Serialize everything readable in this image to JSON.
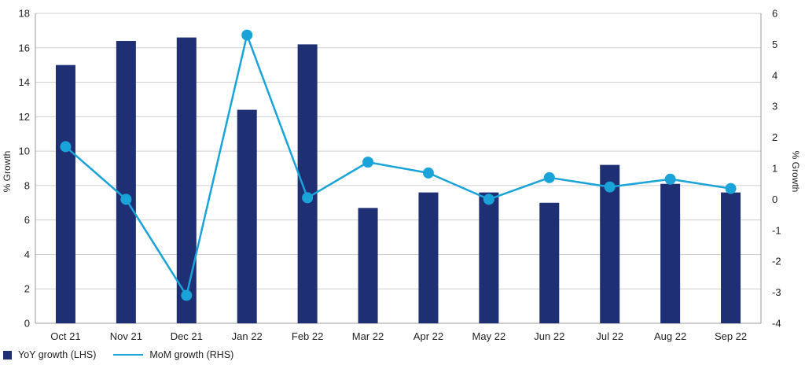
{
  "chart_data": {
    "type": "bar+line",
    "categories": [
      "Oct 21",
      "Nov 21",
      "Dec 21",
      "Jan 22",
      "Feb 22",
      "Mar 22",
      "Apr 22",
      "May 22",
      "Jun 22",
      "Jul 22",
      "Aug 22",
      "Sep 22"
    ],
    "series": [
      {
        "name": "YoY growth (LHS)",
        "type": "bar",
        "axis": "left",
        "color": "#1f2f73",
        "values": [
          15.0,
          16.4,
          16.6,
          12.4,
          16.2,
          6.7,
          7.6,
          7.6,
          7.0,
          9.2,
          8.1,
          7.6
        ]
      },
      {
        "name": "MoM growth (RHS)",
        "type": "line",
        "axis": "right",
        "color": "#1aa3d9",
        "values": [
          1.7,
          0.0,
          -3.1,
          5.3,
          0.05,
          1.2,
          0.85,
          0.0,
          0.7,
          0.4,
          0.65,
          0.35
        ]
      }
    ],
    "left_axis": {
      "label": "% Growth",
      "min": 0,
      "max": 18,
      "step": 2,
      "ticks": [
        "0",
        "2",
        "4",
        "6",
        "8",
        "10",
        "12",
        "14",
        "16",
        "18"
      ]
    },
    "right_axis": {
      "label": "% Growth",
      "min": -4,
      "max": 6,
      "step": 1,
      "ticks": [
        "-4",
        "-3",
        "-2",
        "-1",
        "0",
        "1",
        "2",
        "3",
        "4",
        "5",
        "6"
      ]
    },
    "grid": true,
    "legend_position": "bottom-left"
  }
}
